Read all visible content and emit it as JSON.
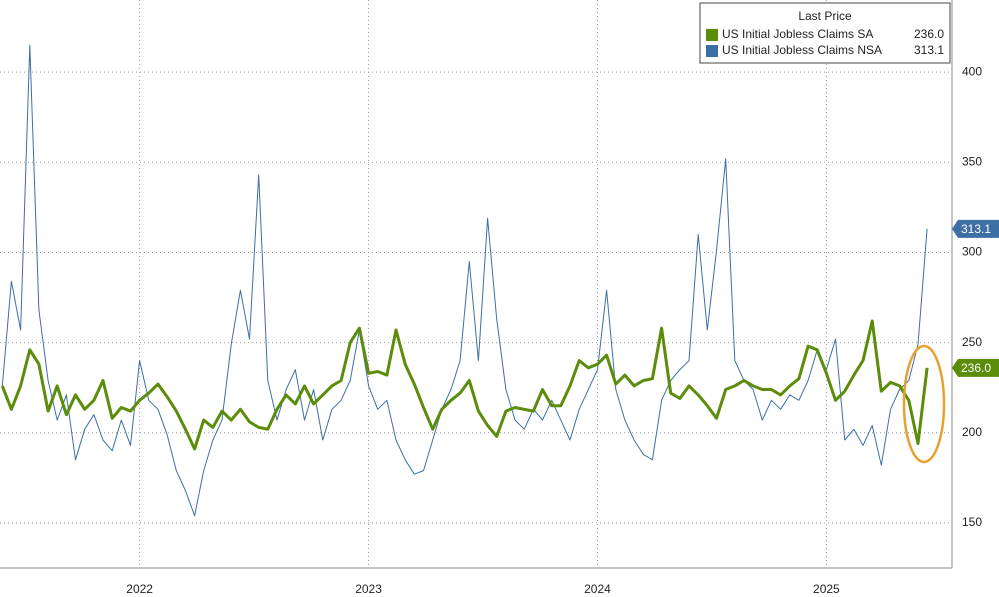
{
  "chart_data": {
    "type": "line",
    "legend_title": "Last Price",
    "x": [
      2021.9,
      2021.94,
      2021.98,
      2022.02,
      2022.06,
      2022.1,
      2022.14,
      2022.18,
      2022.22,
      2022.26,
      2022.3,
      2022.34,
      2022.38,
      2022.42,
      2022.46,
      2022.5,
      2022.54,
      2022.58,
      2022.62,
      2022.66,
      2022.7,
      2022.74,
      2022.78,
      2022.82,
      2022.86,
      2022.9,
      2022.94,
      2022.98,
      2023.02,
      2023.06,
      2023.1,
      2023.14,
      2023.18,
      2023.22,
      2023.26,
      2023.3,
      2023.34,
      2023.38,
      2023.42,
      2023.46,
      2023.5,
      2023.54,
      2023.58,
      2023.62,
      2023.66,
      2023.7,
      2023.74,
      2023.78,
      2023.82,
      2023.86,
      2023.9,
      2023.94,
      2023.98,
      2024.02,
      2024.06,
      2024.1,
      2024.14,
      2024.18,
      2024.22,
      2024.26,
      2024.3,
      2024.34,
      2024.38,
      2024.42,
      2024.46,
      2024.5,
      2024.54,
      2024.58,
      2024.62,
      2024.66,
      2024.7,
      2024.74,
      2024.78,
      2024.82,
      2024.86,
      2024.9,
      2024.94,
      2024.98,
      2025.02,
      2025.06,
      2025.1,
      2025.14,
      2025.18,
      2025.22,
      2025.26,
      2025.3,
      2025.34,
      2025.38,
      2025.42,
      2025.46,
      2025.5,
      2025.54,
      2025.58,
      2025.62,
      2025.66,
      2025.7,
      2025.74,
      2025.78,
      2025.82,
      2025.86,
      2025.9,
      2025.94
    ],
    "series": [
      {
        "name": "US Initial Jobless Claims NSA",
        "color": "#3d6fa5",
        "last_label": "313.1",
        "values": [
          226,
          284,
          257,
          415,
          268,
          229,
          207,
          221,
          185,
          202,
          210,
          196,
          190,
          207,
          193,
          240,
          218,
          213,
          199,
          179,
          168,
          154,
          179,
          196,
          207,
          249,
          279,
          252,
          343,
          229,
          207,
          224,
          235,
          207,
          224,
          196,
          213,
          218,
          229,
          257,
          226,
          213,
          218,
          196,
          185,
          177,
          179,
          196,
          213,
          224,
          240,
          295,
          240,
          319,
          263,
          224,
          207,
          202,
          213,
          207,
          218,
          207,
          196,
          213,
          224,
          235,
          279,
          224,
          207,
          196,
          188,
          185,
          218,
          229,
          235,
          240,
          310,
          257,
          301,
          352,
          240,
          229,
          224,
          207,
          218,
          213,
          221,
          218,
          229,
          246,
          235,
          252,
          196,
          202,
          193,
          204,
          182,
          213,
          224,
          229,
          249,
          313.1
        ]
      },
      {
        "name": "US Initial Jobless Claims SA",
        "color": "#5b8c0a",
        "last_label": "236.0",
        "values": [
          226,
          213,
          226,
          246,
          238,
          212,
          226,
          210,
          221,
          213,
          218,
          229,
          208,
          214,
          212,
          218,
          222,
          227,
          220,
          212,
          202,
          191,
          207,
          203,
          212,
          207,
          213,
          206,
          203,
          202,
          213,
          221,
          216,
          226,
          216,
          221,
          226,
          229,
          250,
          258,
          233,
          234,
          232,
          257,
          238,
          227,
          214,
          202,
          213,
          218,
          222,
          229,
          212,
          204,
          198,
          212,
          214,
          213,
          212,
          224,
          215,
          215,
          226,
          240,
          236,
          238,
          243,
          227,
          232,
          226,
          229,
          230,
          258,
          222,
          219,
          226,
          221,
          215,
          208,
          224,
          226,
          229,
          226,
          224,
          224,
          221,
          226,
          230,
          248,
          246,
          233,
          218,
          223,
          232,
          240,
          262,
          223,
          228,
          226,
          218,
          194,
          236
        ]
      }
    ],
    "xlim": [
      2021.89,
      2026.04
    ],
    "xticks": [
      {
        "value": 2022.5,
        "label": "2022"
      },
      {
        "value": 2023.5,
        "label": "2023"
      },
      {
        "value": 2024.5,
        "label": "2024"
      },
      {
        "value": 2025.5,
        "label": "2025"
      }
    ],
    "ylim": [
      125,
      440
    ],
    "yticks": [
      150,
      200,
      250,
      300,
      350,
      400
    ],
    "grid": true
  }
}
